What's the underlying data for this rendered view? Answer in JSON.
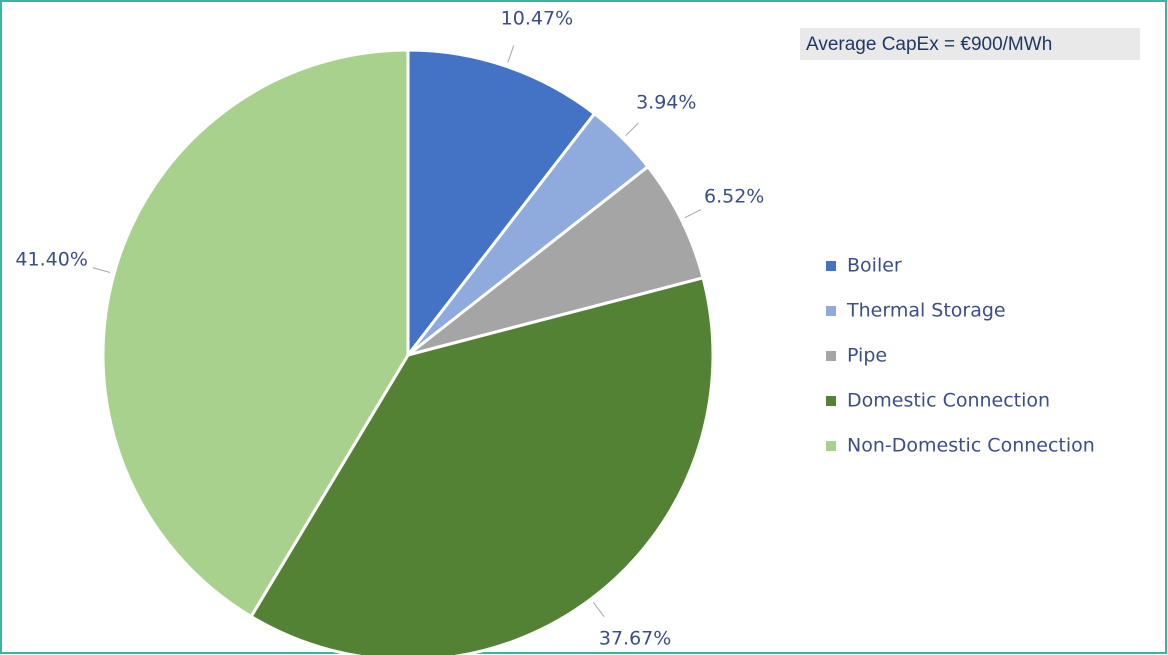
{
  "chart_data": {
    "type": "pie",
    "annotation": "Average CapEx =  €900/MWh",
    "categories": [
      "Boiler",
      "Thermal Storage",
      "Pipe",
      "Domestic Connection",
      "Non-Domestic Connection"
    ],
    "values": [
      10.47,
      3.94,
      6.52,
      37.67,
      41.4
    ],
    "value_labels": [
      "10.47%",
      "3.94%",
      "6.52%",
      "37.67%",
      "41.40%"
    ],
    "colors": [
      "#4472c4",
      "#8faadc",
      "#a5a5a5",
      "#548235",
      "#a9d18e"
    ],
    "legend": "right"
  }
}
